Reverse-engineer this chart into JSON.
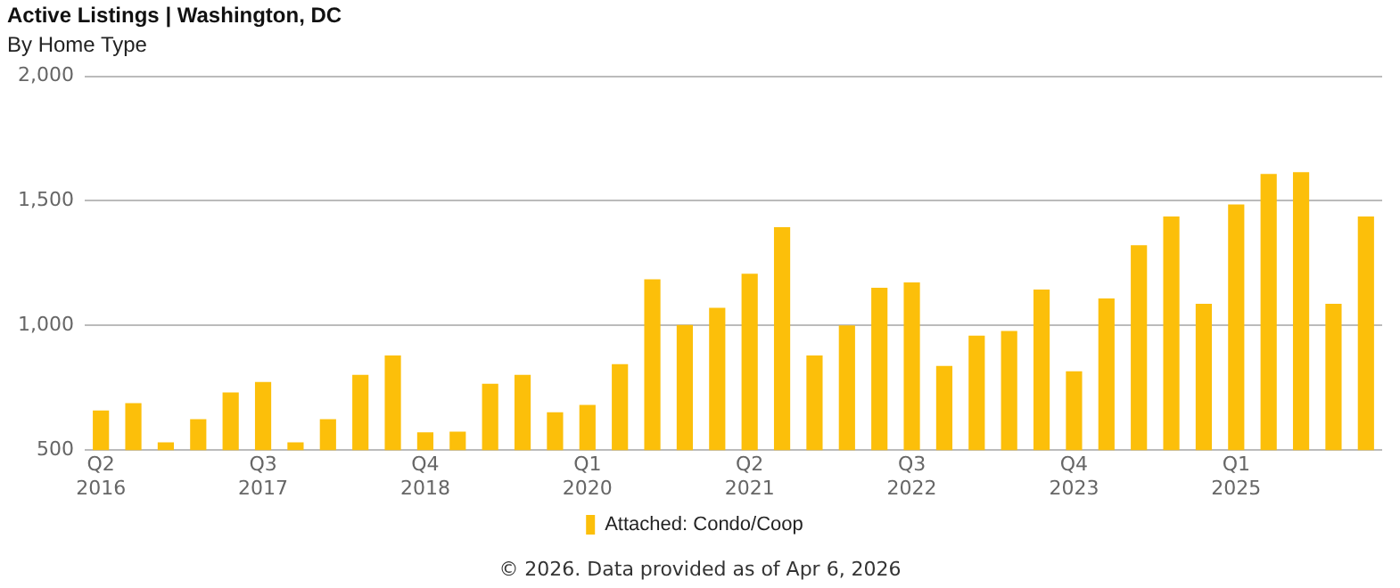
{
  "chart_data": {
    "type": "bar",
    "title": "Active Listings | Washington, DC",
    "subtitle": "By Home Type",
    "categories": [
      "Q2 2016",
      null,
      null,
      null,
      null,
      "Q3 2017",
      null,
      null,
      null,
      null,
      "Q4 2018",
      null,
      null,
      null,
      null,
      "Q1 2020",
      null,
      null,
      null,
      null,
      "Q2 2021",
      null,
      null,
      null,
      null,
      "Q3 2022",
      null,
      null,
      null,
      null,
      "Q4 2023",
      null,
      null,
      null,
      null,
      "Q1 2025",
      null,
      null,
      null,
      null
    ],
    "series": [
      {
        "name": "Attached: Condo/Coop",
        "color": "#fcbf0a",
        "values": [
          659,
          688,
          531,
          624,
          731,
          773,
          531,
          624,
          802,
          880,
          571,
          574,
          766,
          802,
          652,
          681,
          845,
          1185,
          1002,
          1071,
          1208,
          1394,
          880,
          1000,
          1151,
          1173,
          838,
          959,
          978,
          1144,
          816,
          1108,
          1322,
          1437,
          1087,
          1486,
          1608,
          1615,
          1087,
          1437
        ]
      }
    ],
    "ylim": [
      500,
      2000
    ],
    "yticks": [
      {
        "value": 500,
        "label": "500"
      },
      {
        "value": 1000,
        "label": "1,000"
      },
      {
        "value": 1500,
        "label": "1,500"
      },
      {
        "value": 2000,
        "label": "2,000"
      }
    ],
    "grid": "y",
    "legend": "bottom",
    "annotations": [
      "© 2026. Data provided as of Apr 6, 2026"
    ]
  }
}
